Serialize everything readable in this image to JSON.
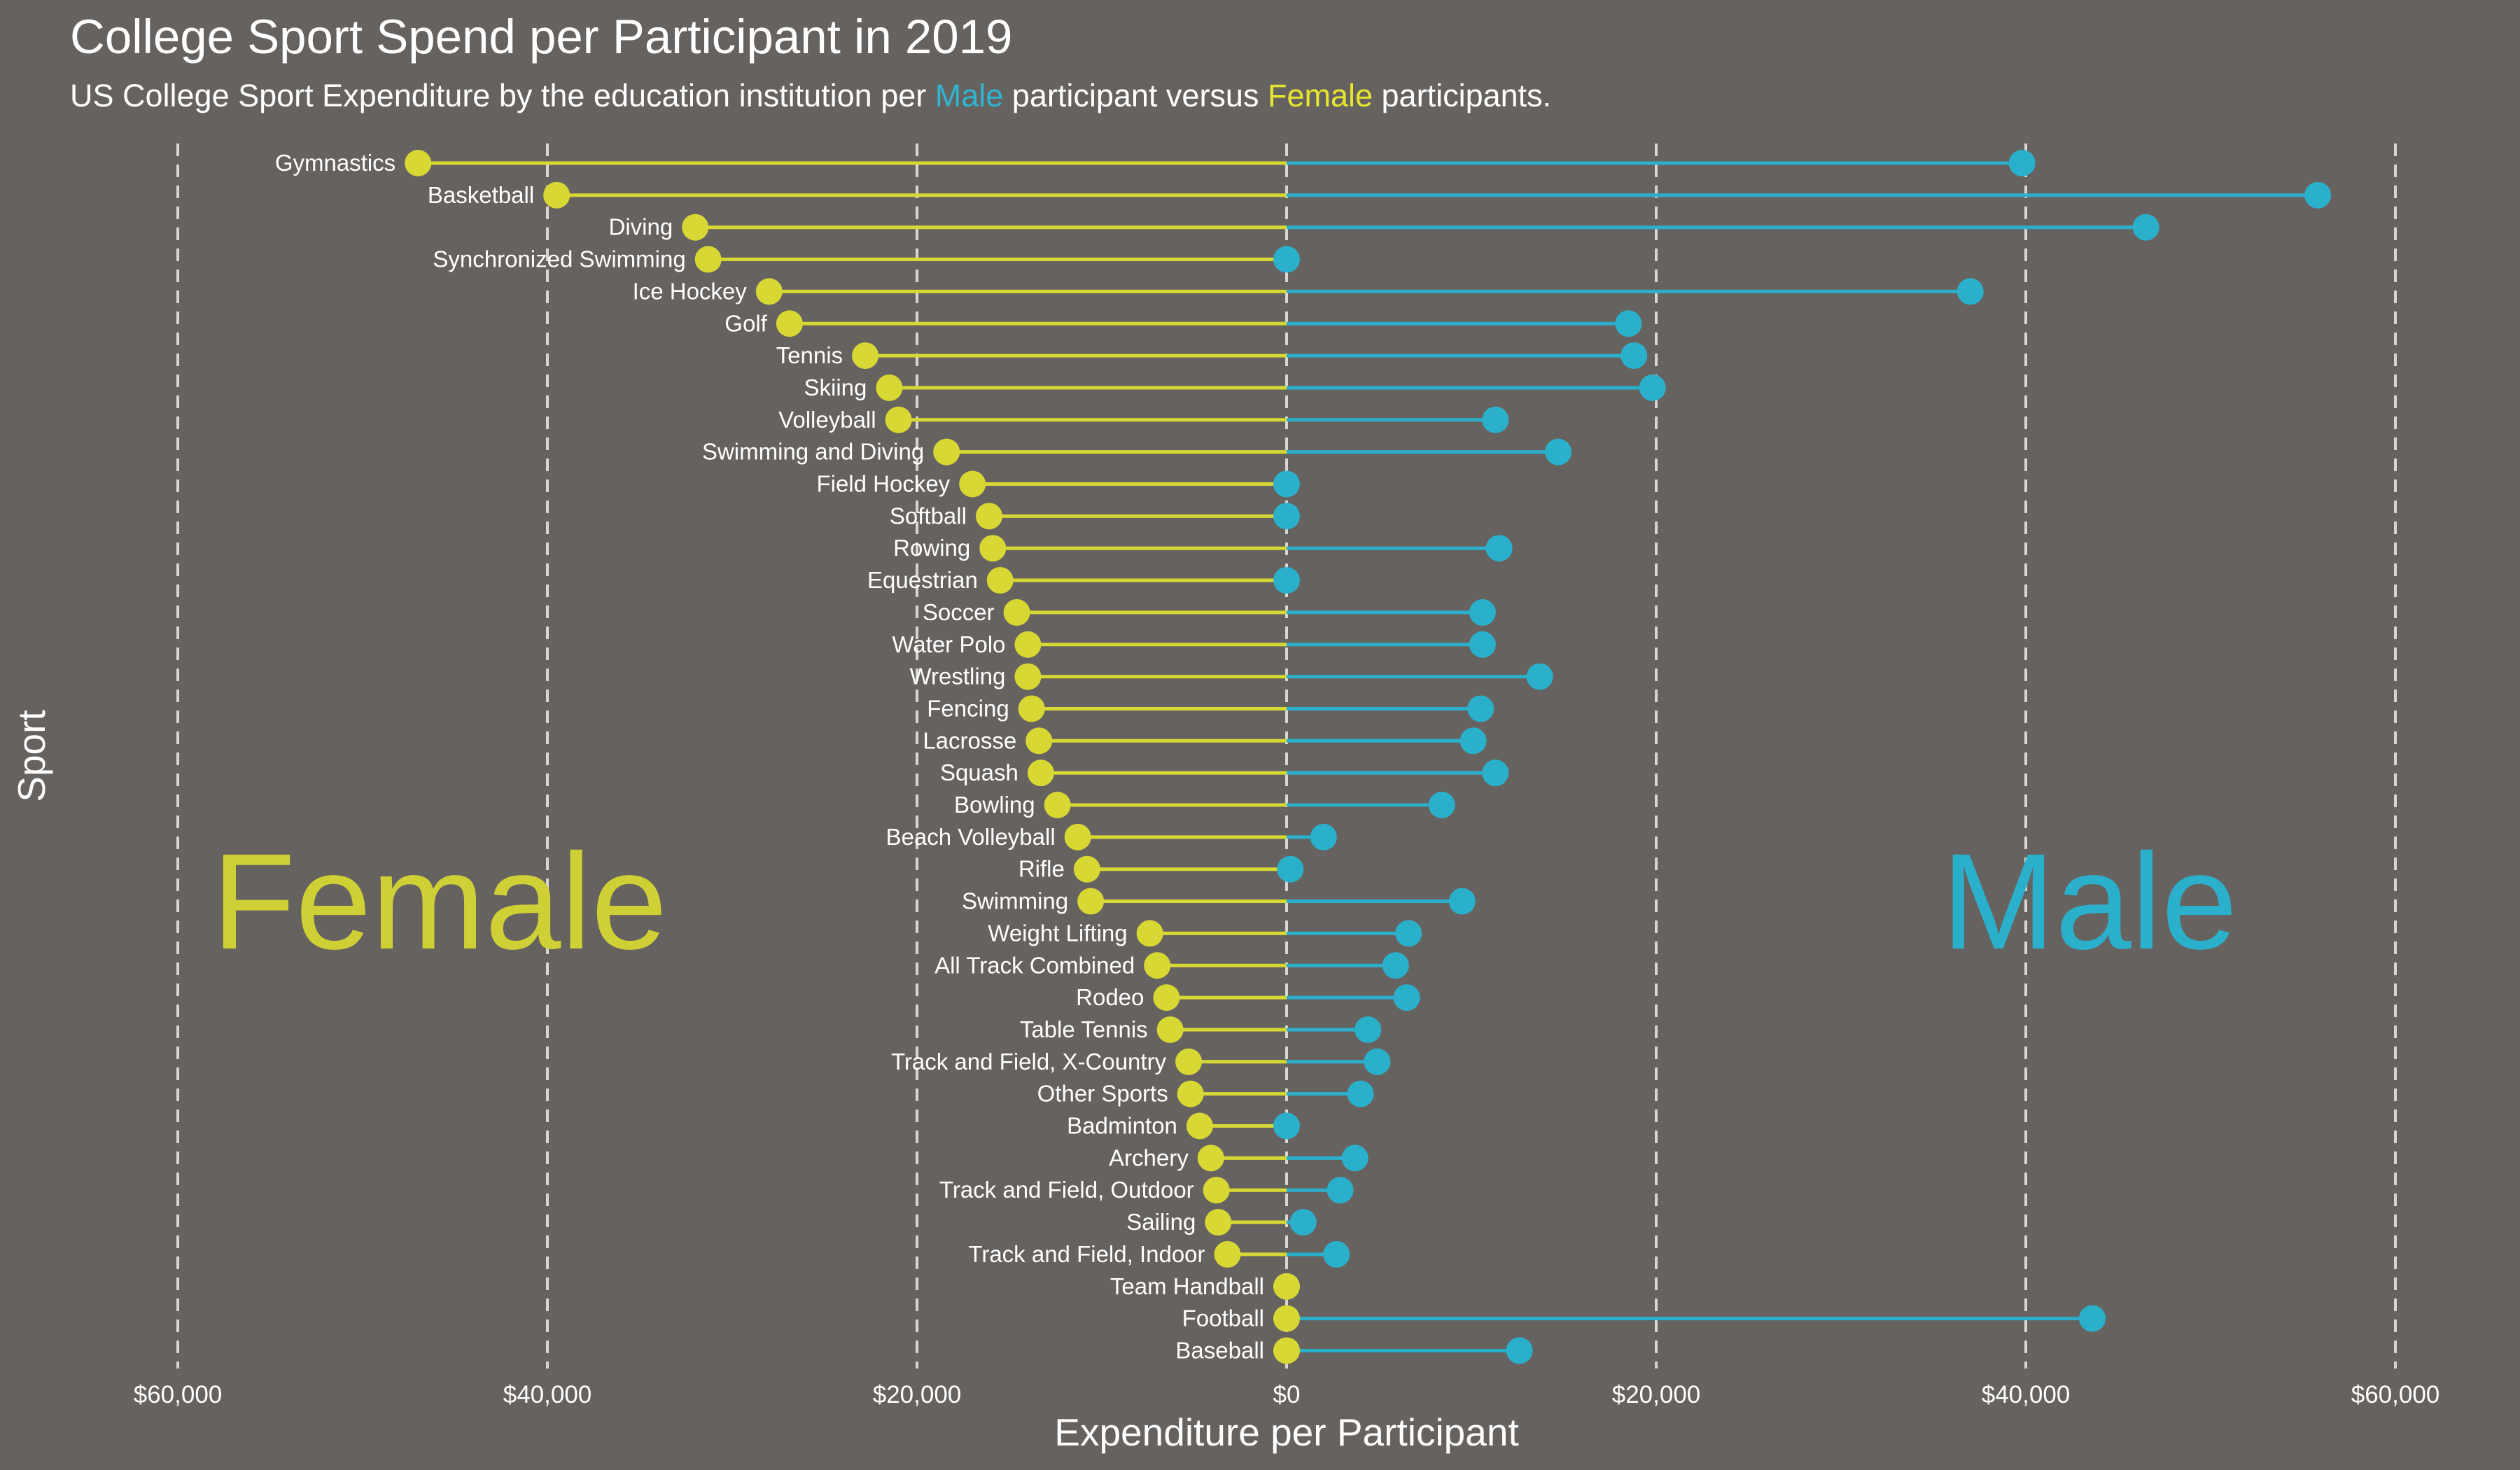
{
  "title": "College Sport Spend per Participant in 2019",
  "subtitle": {
    "prefix": "US College Sport Expenditure by the education institution per ",
    "male": "Male",
    "middle": " participant versus ",
    "female": "Female",
    "suffix": " participants."
  },
  "annotations": {
    "female": "Female",
    "male": "Male"
  },
  "colors": {
    "background": "#66625f",
    "female": "#d8d834",
    "male": "#2bb0cc",
    "grid": "#d9d6d2",
    "text": "#ffffff"
  },
  "chart_data": {
    "type": "dumbbell",
    "xlabel": "Expenditure per Participant",
    "ylabel": "Sport",
    "xlim": [
      -60000,
      60000
    ],
    "xticks": [
      -60000,
      -40000,
      -20000,
      0,
      20000,
      40000,
      60000
    ],
    "xtick_labels": [
      "$60,000",
      "$40,000",
      "$20,000",
      "$0",
      "$20,000",
      "$40,000",
      "$60,000"
    ],
    "grid": "vertical dashed",
    "series": [
      {
        "name": "Female",
        "side": "left"
      },
      {
        "name": "Male",
        "side": "right"
      }
    ],
    "categories": [
      "Gymnastics",
      "Basketball",
      "Diving",
      "Synchronized Swimming",
      "Ice Hockey",
      "Golf",
      "Tennis",
      "Skiing",
      "Volleyball",
      "Swimming and Diving",
      "Field Hockey",
      "Softball",
      "Rowing",
      "Equestrian",
      "Soccer",
      "Water Polo",
      "Wrestling",
      "Fencing",
      "Lacrosse",
      "Squash",
      "Bowling",
      "Beach Volleyball",
      "Rifle",
      "Swimming",
      "Weight Lifting",
      "All Track Combined",
      "Rodeo",
      "Table Tennis",
      "Track and Field, X-Country",
      "Other Sports",
      "Badminton",
      "Archery",
      "Track and Field, Outdoor",
      "Sailing",
      "Track and Field, Indoor",
      "Team Handball",
      "Football",
      "Baseball"
    ],
    "female": [
      47000,
      39500,
      32000,
      31300,
      28000,
      26900,
      22800,
      21500,
      21000,
      18400,
      17000,
      16100,
      15900,
      15500,
      14600,
      14000,
      14000,
      13800,
      13400,
      13300,
      12400,
      11300,
      10800,
      10600,
      7400,
      7000,
      6500,
      6300,
      5300,
      5200,
      4700,
      4100,
      3800,
      3700,
      3200,
      0,
      0,
      0
    ],
    "male": [
      39800,
      55800,
      46500,
      0,
      37000,
      18500,
      18800,
      19800,
      11300,
      14700,
      0,
      0,
      11500,
      0,
      10600,
      10600,
      13700,
      10500,
      10100,
      11300,
      8400,
      2000,
      200,
      9500,
      6600,
      5900,
      6500,
      4400,
      4900,
      4000,
      0,
      3700,
      2900,
      900,
      2700,
      0,
      43600,
      12600
    ]
  }
}
